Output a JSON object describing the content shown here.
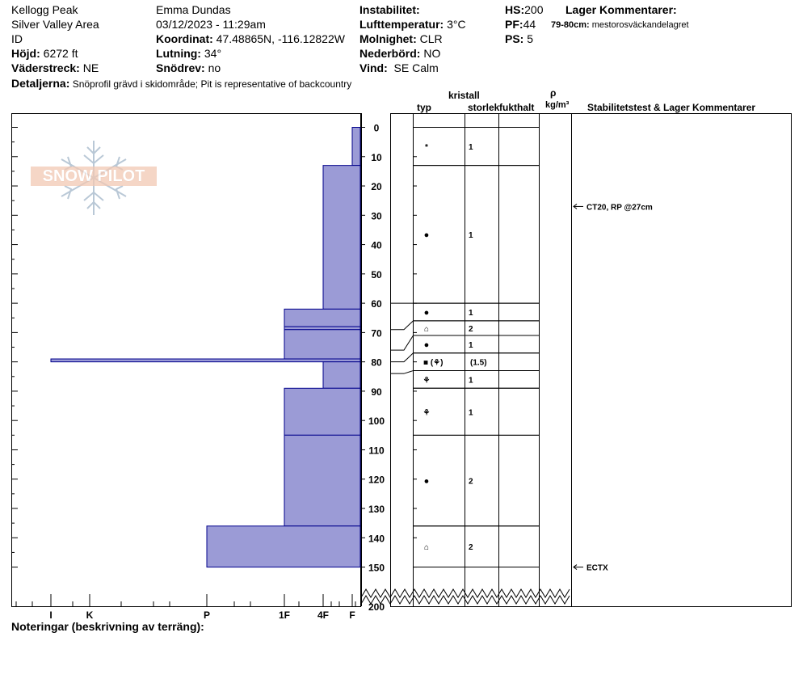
{
  "header": {
    "location": "Kellogg Peak",
    "area": "Silver Valley Area",
    "id_label": "ID",
    "elevation_label": "Höjd:",
    "elevation_value": "6272 ft",
    "aspect_label": "Väderstreck:",
    "aspect_value": "NE",
    "observer": "Emma Dundas",
    "datetime": "03/12/2023 - 11:29am",
    "coord_label": "Koordinat:",
    "coord_value": "47.48865N, -116.12822W",
    "slope_label": "Lutning:",
    "slope_value": "34°",
    "drift_label": "Snödrev:",
    "drift_value": "no",
    "instability_label": "Instabilitet:",
    "airtemp_label": "Lufttemperatur:",
    "airtemp_value": "3°C",
    "sky_label": "Molnighet:",
    "sky_value": "CLR",
    "precip_label": "Nederbörd:",
    "precip_value": "NO",
    "wind_label": "Vind:",
    "wind_value": "SE Calm",
    "hs_label": "HS:",
    "hs_value": "200",
    "pf_label": "PF:",
    "pf_value": "44",
    "ps_label": "PS:",
    "ps_value": "5",
    "layer_comments_label": "Lager Kommentarer:",
    "layer_comment_range": "79-80cm:",
    "layer_comment_text": "mestorosväckandelagret",
    "details_label": "Detaljerna:",
    "details_value": "Snöprofil grävd i skidområde;  Pit is representative of backcountry"
  },
  "columns": {
    "crystal": "kristall",
    "type": "typ",
    "size": "storlek",
    "moisture": "fukthalt",
    "rho": "ρ",
    "density_unit": "kg/m³",
    "stability": "Stabilitetstest & Lager Kommentarer"
  },
  "notes_label": "Noteringar (beskrivning av terräng):",
  "logo_text": "SNOW PILOT",
  "colors": {
    "bar_fill": "#9b9bd6",
    "bar_stroke": "#00008b",
    "grid": "#000000"
  },
  "chart_data": {
    "type": "bar",
    "orientation": "horizontal",
    "x_axis": {
      "ticks": [
        "I",
        "K",
        "P",
        "1F",
        "4F",
        "F"
      ],
      "reversed": true
    },
    "y_axis": {
      "unit": "cm",
      "range": [
        0,
        200
      ],
      "ticks": [
        0,
        10,
        20,
        30,
        40,
        50,
        60,
        70,
        80,
        90,
        100,
        110,
        120,
        130,
        140,
        150,
        200
      ]
    },
    "hardness_layers": [
      {
        "top": 0,
        "bottom": 13,
        "hardness": "F"
      },
      {
        "top": 13,
        "bottom": 62,
        "hardness": "4F"
      },
      {
        "top": 62,
        "bottom": 68,
        "hardness": "1F"
      },
      {
        "top": 68,
        "bottom": 69,
        "hardness": "1F"
      },
      {
        "top": 69,
        "bottom": 79,
        "hardness": "1F"
      },
      {
        "top": 79,
        "bottom": 80,
        "hardness": "I"
      },
      {
        "top": 80,
        "bottom": 89,
        "hardness": "4F"
      },
      {
        "top": 89,
        "bottom": 105,
        "hardness": "1F"
      },
      {
        "top": 105,
        "bottom": 136,
        "hardness": "1F"
      },
      {
        "top": 136,
        "bottom": 150,
        "hardness": "P"
      }
    ],
    "layer_rows": [
      {
        "top": 0,
        "bottom": 13,
        "type": "new-snow",
        "size": "1"
      },
      {
        "top": 13,
        "bottom": 60,
        "type": "rounded",
        "size": "1"
      },
      {
        "top": 60,
        "bottom": 66,
        "type": "rounded",
        "size": "1"
      },
      {
        "top": 66,
        "bottom": 71,
        "type": "faceted",
        "size": "2"
      },
      {
        "top": 71,
        "bottom": 77,
        "type": "rounded",
        "size": "1"
      },
      {
        "top": 77,
        "bottom": 83,
        "type": "melt-form",
        "size": "(1.5)",
        "secondary": "surface-hoar"
      },
      {
        "top": 83,
        "bottom": 89,
        "type": "surface-hoar",
        "size": "1"
      },
      {
        "top": 89,
        "bottom": 105,
        "type": "surface-hoar",
        "size": "1"
      },
      {
        "top": 105,
        "bottom": 136,
        "type": "rounded",
        "size": "2"
      },
      {
        "top": 136,
        "bottom": 150,
        "type": "faceted",
        "size": "2"
      }
    ],
    "tests": [
      {
        "depth": 27,
        "label": "CT20, RP @27cm"
      },
      {
        "depth": 150,
        "label": "ECTX"
      }
    ]
  }
}
